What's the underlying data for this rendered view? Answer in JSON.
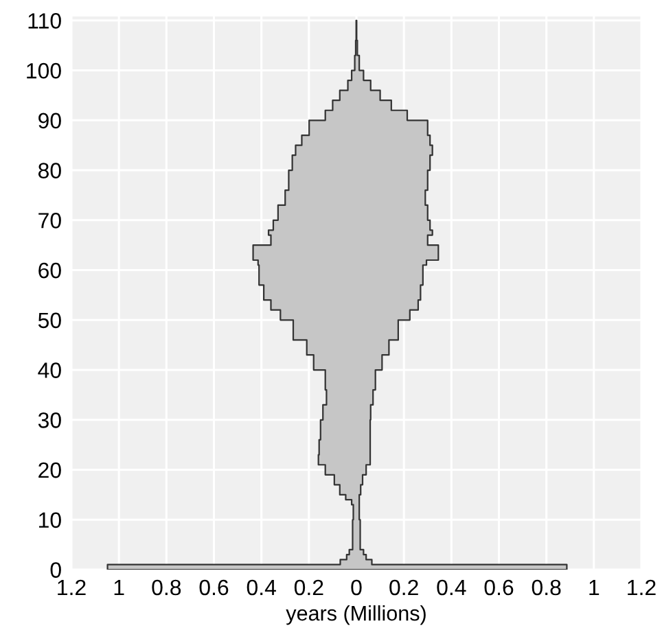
{
  "chart_data": {
    "type": "area",
    "orientation": "horizontal",
    "xlabel": "years (Millions)",
    "xlim": [
      -1.2,
      1.2
    ],
    "xticks": [
      {
        "value": -1.2,
        "label": "1.2"
      },
      {
        "value": -1,
        "label": "1"
      },
      {
        "value": -0.8,
        "label": "0.8"
      },
      {
        "value": -0.6,
        "label": "0.6"
      },
      {
        "value": -0.4,
        "label": "0.4"
      },
      {
        "value": -0.2,
        "label": "0.2"
      },
      0,
      0.2,
      0.4,
      0.6,
      0.8,
      1,
      1.2
    ],
    "ylim": [
      0,
      110.8
    ],
    "yticks": [
      0,
      10,
      20,
      30,
      40,
      50,
      60,
      70,
      80,
      90,
      100,
      110
    ],
    "grid": true,
    "series": [
      {
        "color": "#c6c6c6",
        "x": [
          0,
          1,
          2,
          3,
          4,
          6,
          10,
          13,
          14,
          15,
          17,
          19,
          21,
          23,
          26,
          30,
          33,
          36,
          40,
          43,
          46,
          50,
          52,
          54,
          57,
          61,
          62,
          64,
          65,
          67,
          68,
          70,
          73,
          76,
          80,
          83,
          85,
          87,
          90,
          92,
          94,
          96,
          98,
          100,
          103,
          106,
          110
        ],
        "values": [
          -1.048,
          -0.068,
          -0.041,
          -0.03,
          -0.016,
          -0.016,
          -0.013,
          -0.02,
          -0.045,
          -0.07,
          -0.093,
          -0.131,
          -0.16,
          -0.157,
          -0.151,
          -0.141,
          -0.126,
          -0.131,
          -0.18,
          -0.209,
          -0.266,
          -0.32,
          -0.36,
          -0.39,
          -0.41,
          -0.414,
          -0.435,
          -0.435,
          -0.36,
          -0.37,
          -0.35,
          -0.33,
          -0.3,
          -0.285,
          -0.27,
          -0.256,
          -0.23,
          -0.199,
          -0.131,
          -0.1,
          -0.07,
          -0.036,
          -0.02,
          -0.007,
          -0.003,
          -0.001,
          0
        ]
      },
      {
        "color": "#c6c6c6",
        "x": [
          0,
          1,
          2,
          3,
          4,
          6,
          10,
          13,
          15,
          17,
          19,
          21,
          26,
          30,
          33,
          36,
          40,
          43,
          46,
          50,
          52,
          54,
          57,
          61,
          62,
          64,
          65,
          67,
          68,
          70,
          73,
          76,
          80,
          83,
          85,
          87,
          90,
          92,
          94,
          96,
          98,
          100,
          103,
          106,
          110
        ],
        "values": [
          0.886,
          0.065,
          0.041,
          0.03,
          0.016,
          0.016,
          0.012,
          0.012,
          0.018,
          0.026,
          0.041,
          0.058,
          0.058,
          0.06,
          0.07,
          0.08,
          0.108,
          0.137,
          0.176,
          0.225,
          0.26,
          0.27,
          0.28,
          0.295,
          0.345,
          0.345,
          0.3,
          0.32,
          0.31,
          0.3,
          0.29,
          0.3,
          0.31,
          0.32,
          0.31,
          0.3,
          0.214,
          0.147,
          0.1,
          0.06,
          0.03,
          0.012,
          0.004,
          0.001,
          0
        ]
      }
    ]
  }
}
